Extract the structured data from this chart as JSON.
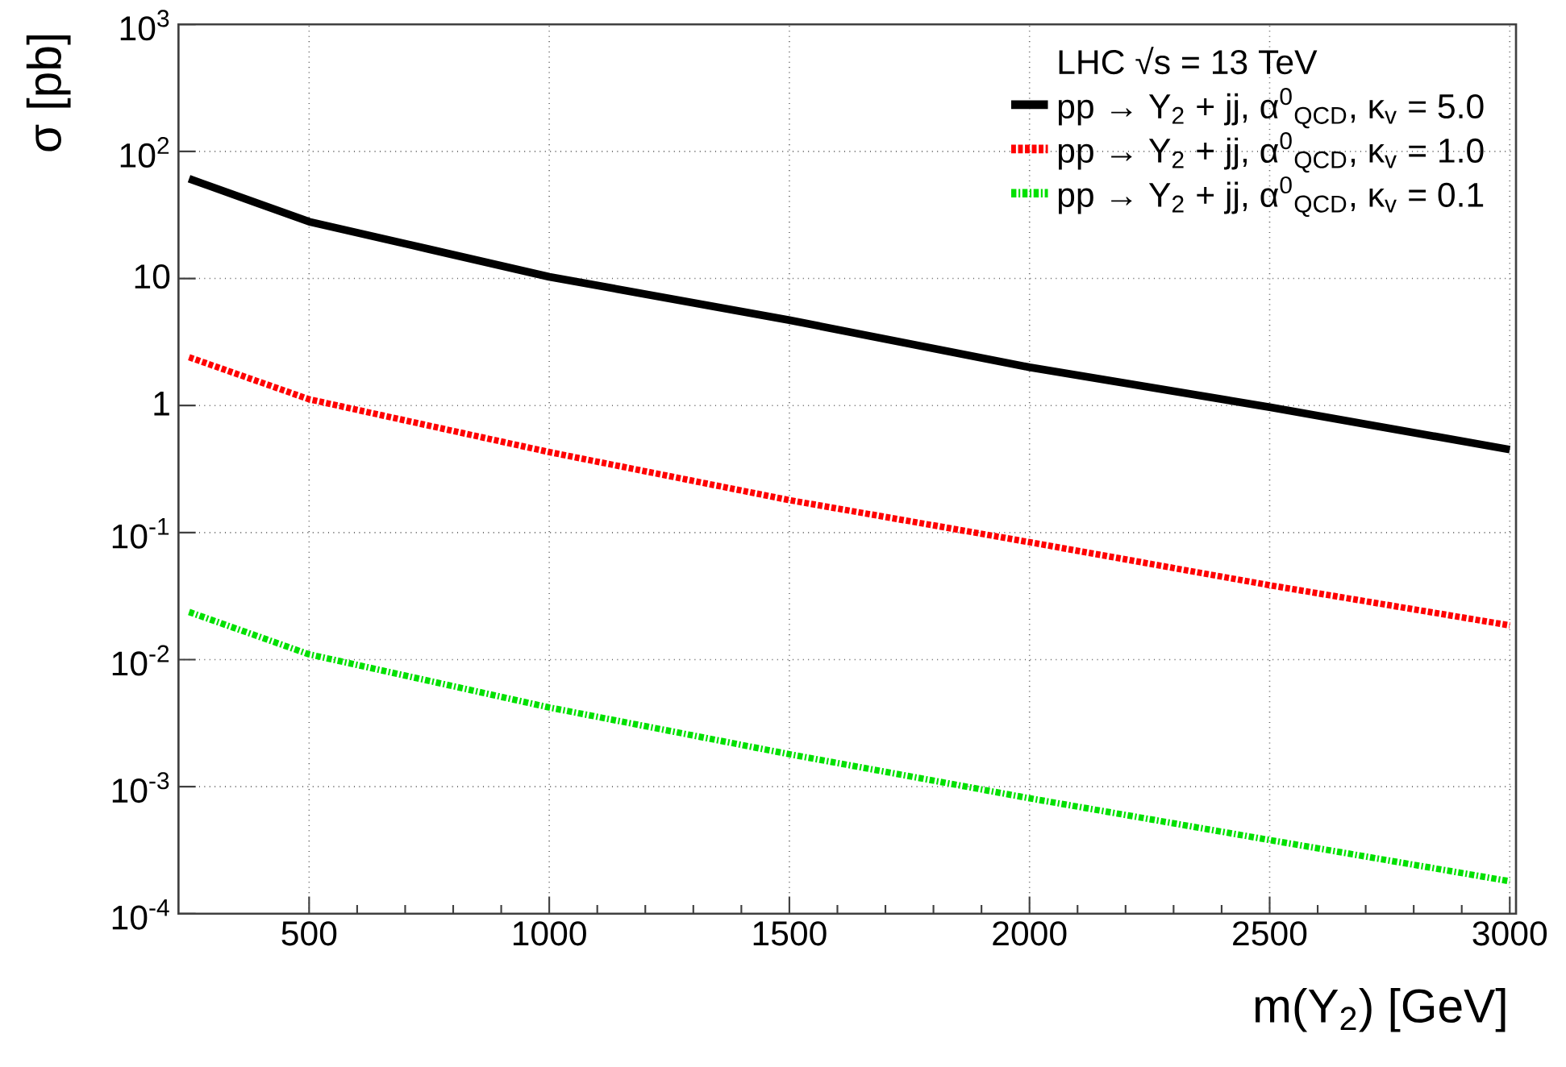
{
  "chart_data": {
    "type": "line",
    "legend_title": "LHC   √s = 13 TeV",
    "xlabel": "m(Y$_{2}$) [GeV]",
    "ylabel": "σ [pb]",
    "x": [
      250,
      500,
      750,
      1000,
      1500,
      2000,
      2500,
      3000
    ],
    "series": [
      {
        "name": "pp → Y$_{2}$ + jj, α$^{0}$$_{QCD}$, κ$_{v}$ = 5.0",
        "color": "#000000",
        "line_style": "solid",
        "values": [
          61,
          28,
          17,
          10.3,
          4.7,
          2.0,
          0.97,
          0.45
        ]
      },
      {
        "name": "pp → Y$_{2}$ + jj, α$^{0}$$_{QCD}$, κ$_{v}$ = 1.0",
        "color": "#ff0000",
        "line_style": "dashed",
        "values": [
          2.4,
          1.12,
          null,
          0.43,
          0.18,
          0.084,
          0.0385,
          0.0186
        ]
      },
      {
        "name": "pp → Y$_{2}$ + jj, α$^{0}$$_{QCD}$, κ$_{v}$ = 0.1",
        "color": "#00e000",
        "line_style": "dotted",
        "values": [
          0.0237,
          0.011,
          null,
          0.0042,
          0.0018,
          0.00081,
          0.00038,
          0.00018
        ]
      }
    ],
    "xlim": [
      228,
      3013
    ],
    "ylim": [
      0.0001,
      1000
    ],
    "xticks": [
      500,
      1000,
      1500,
      2000,
      2500,
      3000
    ],
    "yticks": [
      {
        "value": 0.0001,
        "label": "10$^{-4}$"
      },
      {
        "value": 0.001,
        "label": "10$^{-3}$"
      },
      {
        "value": 0.01,
        "label": "10$^{-2}$"
      },
      {
        "value": 0.1,
        "label": "10$^{-1}$"
      },
      1,
      10,
      {
        "value": 100,
        "label": "10$^{2}$"
      },
      {
        "value": 1000,
        "label": "10$^{3}$"
      }
    ],
    "log": "y",
    "grid": true,
    "legend": "top right"
  }
}
